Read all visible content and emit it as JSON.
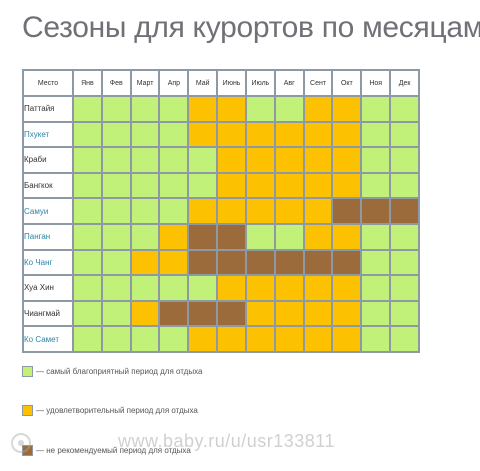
{
  "title": "Сезоны для курортов по месяцам",
  "colors": {
    "best": "#c2f179",
    "ok": "#fcc100",
    "bad": "#9b6b3c",
    "grid": "#8d9aa6",
    "link": "#2f84a6"
  },
  "chart_data": {
    "type": "heatmap",
    "title": "Сезоны для курортов по месяцам",
    "header_place": "Место",
    "months": [
      "Янв",
      "Фев",
      "Март",
      "Апр",
      "Май",
      "Июнь",
      "Июль",
      "Авг",
      "Сент",
      "Окт",
      "Ноя",
      "Дек"
    ],
    "rows": [
      {
        "place": "Паттайя",
        "link": false,
        "values": [
          "best",
          "best",
          "best",
          "best",
          "ok",
          "ok",
          "best",
          "best",
          "ok",
          "ok",
          "best",
          "best"
        ]
      },
      {
        "place": "Пхукет",
        "link": true,
        "values": [
          "best",
          "best",
          "best",
          "best",
          "ok",
          "ok",
          "ok",
          "ok",
          "ok",
          "ok",
          "best",
          "best"
        ]
      },
      {
        "place": "Краби",
        "link": false,
        "values": [
          "best",
          "best",
          "best",
          "best",
          "best",
          "ok",
          "ok",
          "ok",
          "ok",
          "ok",
          "best",
          "best"
        ]
      },
      {
        "place": "Бангкок",
        "link": false,
        "values": [
          "best",
          "best",
          "best",
          "best",
          "best",
          "ok",
          "ok",
          "ok",
          "ok",
          "ok",
          "best",
          "best"
        ]
      },
      {
        "place": "Самуи",
        "link": true,
        "values": [
          "best",
          "best",
          "best",
          "best",
          "ok",
          "ok",
          "ok",
          "ok",
          "ok",
          "bad",
          "bad",
          "bad"
        ]
      },
      {
        "place": "Панган",
        "link": true,
        "values": [
          "best",
          "best",
          "best",
          "ok",
          "bad",
          "bad",
          "best",
          "best",
          "ok",
          "ok",
          "best",
          "best"
        ]
      },
      {
        "place": "Ко Чанг",
        "link": true,
        "values": [
          "best",
          "best",
          "ok",
          "ok",
          "bad",
          "bad",
          "bad",
          "bad",
          "bad",
          "bad",
          "best",
          "best"
        ]
      },
      {
        "place": "Хуа Хин",
        "link": false,
        "values": [
          "best",
          "best",
          "best",
          "best",
          "best",
          "ok",
          "ok",
          "ok",
          "ok",
          "ok",
          "best",
          "best"
        ]
      },
      {
        "place": "Чиангмай",
        "link": false,
        "values": [
          "best",
          "best",
          "ok",
          "bad",
          "bad",
          "bad",
          "ok",
          "ok",
          "ok",
          "ok",
          "best",
          "best"
        ]
      },
      {
        "place": "Ко Самет",
        "link": true,
        "values": [
          "best",
          "best",
          "best",
          "best",
          "ok",
          "ok",
          "ok",
          "ok",
          "ok",
          "ok",
          "best",
          "best"
        ]
      }
    ],
    "legend": [
      {
        "key": "best",
        "label": "— самый благоприятный период для отдыха"
      },
      {
        "key": "ok",
        "label": "— удовлетворительный период для отдыха"
      },
      {
        "key": "bad",
        "label": "— не рекомендуемый период для отдыха"
      }
    ]
  },
  "watermark": "www.baby.ru/u/usr133811"
}
